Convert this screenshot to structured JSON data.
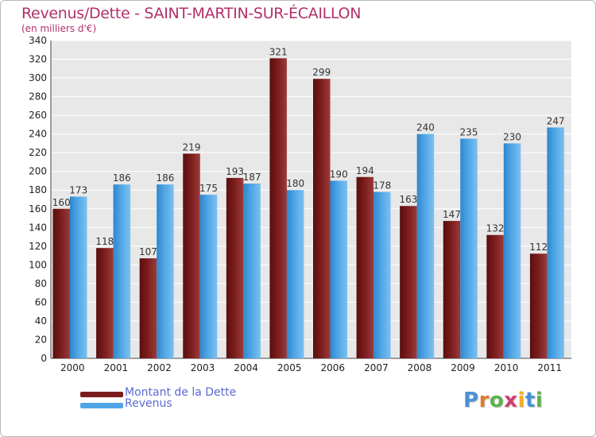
{
  "chart_data": {
    "type": "bar",
    "title": "Revenus/Dette - SAINT-MARTIN-SUR-ÉCAILLON",
    "subtitle": "(en milliers d'€)",
    "categories": [
      "2000",
      "2001",
      "2002",
      "2003",
      "2004",
      "2005",
      "2006",
      "2007",
      "2008",
      "2009",
      "2010",
      "2011"
    ],
    "series": [
      {
        "name": "Montant de la Dette",
        "color": "#7a1c1c",
        "values": [
          160,
          118,
          107,
          219,
          193,
          321,
          299,
          194,
          163,
          147,
          132,
          112
        ]
      },
      {
        "name": "Revenus",
        "color": "#4fa6e6",
        "values": [
          173,
          186,
          186,
          175,
          187,
          180,
          190,
          178,
          240,
          235,
          230,
          247
        ]
      }
    ],
    "ylim": [
      0,
      340
    ],
    "ytick_step": 20,
    "grid": true,
    "legend": "bottom-left"
  },
  "logo_text": "Proxiti"
}
